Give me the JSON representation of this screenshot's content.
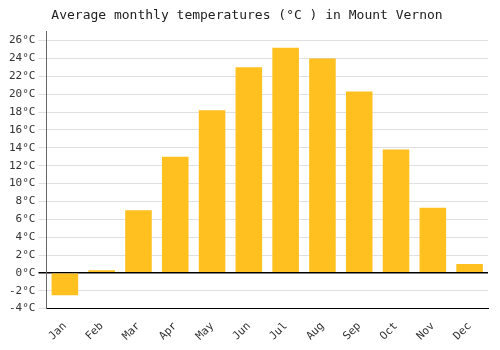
{
  "chart_data": {
    "type": "bar",
    "title": "Average monthly temperatures (°C ) in Mount Vernon",
    "categories": [
      "Jan",
      "Feb",
      "Mar",
      "Apr",
      "May",
      "Jun",
      "Jul",
      "Aug",
      "Sep",
      "Oct",
      "Nov",
      "Dec"
    ],
    "values": [
      -2.5,
      0.3,
      7.0,
      13.0,
      18.2,
      23.0,
      25.2,
      24.0,
      20.3,
      13.8,
      7.3,
      1.0
    ],
    "color": "#FFC020",
    "ylim": [
      -4,
      27
    ],
    "yticks": [
      {
        "value": -4,
        "label": "-4°C"
      },
      {
        "value": -2,
        "label": "-2°C"
      },
      {
        "value": 0,
        "label": "0°C"
      },
      {
        "value": 2,
        "label": "2°C"
      },
      {
        "value": 4,
        "label": "4°C"
      },
      {
        "value": 6,
        "label": "6°C"
      },
      {
        "value": 8,
        "label": "8°C"
      },
      {
        "value": 10,
        "label": "10°C"
      },
      {
        "value": 12,
        "label": "12°C"
      },
      {
        "value": 14,
        "label": "14°C"
      },
      {
        "value": 16,
        "label": "16°C"
      },
      {
        "value": 18,
        "label": "18°C"
      },
      {
        "value": 20,
        "label": "20°C"
      },
      {
        "value": 22,
        "label": "22°C"
      },
      {
        "value": 24,
        "label": "24°C"
      },
      {
        "value": 26,
        "label": "26°C"
      }
    ],
    "grid": true
  }
}
